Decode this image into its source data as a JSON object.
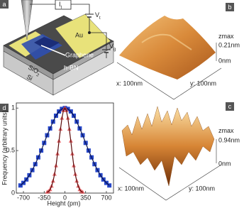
{
  "panels": {
    "a": {
      "label": "a",
      "current": {
        "main": "I",
        "sub": "t"
      },
      "tip_bias": {
        "main": "V",
        "sub": "t"
      },
      "gate": {
        "main": "V",
        "sub": "g"
      },
      "gold": "Au",
      "graphene": "Graphene",
      "hbn": "h-BN",
      "oxide": {
        "main": "SiO",
        "sub": "2"
      },
      "substrate": "Si"
    },
    "b": {
      "label": "b",
      "z_title": {
        "main": "z",
        "sub": "max"
      },
      "z_max": "0.21nm",
      "z_min": "0nm",
      "x_size": "x: 100nm",
      "y_size": "y: 100nm"
    },
    "c": {
      "label": "c",
      "z_title": {
        "main": "z",
        "sub": "max"
      },
      "z_max": "0.94nm",
      "z_min": "0nm",
      "x_size": "x: 100nm",
      "y_size": "y: 100nm"
    }
  },
  "chart_data": {
    "type": "scatter",
    "panel_label": "d",
    "x_label": "Height (pm)",
    "y_label": "Frequency (arbitrary units)",
    "xlim": [
      -820,
      820
    ],
    "ylim": [
      0,
      1.06
    ],
    "xticks": [
      -700,
      -350,
      0,
      350,
      700
    ],
    "yticks": [
      0,
      0.5,
      1
    ],
    "series": [
      {
        "color": "#2646c8",
        "line_color": "#0a1450",
        "marker": "square",
        "x": [
          -750,
          -700,
          -650,
          -600,
          -550,
          -500,
          -450,
          -400,
          -350,
          -300,
          -250,
          -200,
          -150,
          -100,
          -50,
          0,
          50,
          100,
          150,
          200,
          250,
          300,
          350,
          400,
          450,
          500,
          550,
          600,
          650,
          700,
          750
        ],
        "values": [
          0.09,
          0.12,
          0.16,
          0.21,
          0.27,
          0.34,
          0.42,
          0.5,
          0.59,
          0.68,
          0.76,
          0.84,
          0.91,
          0.96,
          0.99,
          1,
          0.99,
          0.96,
          0.91,
          0.84,
          0.76,
          0.68,
          0.59,
          0.5,
          0.42,
          0.34,
          0.27,
          0.21,
          0.16,
          0.12,
          0.09
        ]
      },
      {
        "color": "#e0474c",
        "line_color": "#5a0a0a",
        "marker": "triangle",
        "x": [
          -300,
          -275,
          -250,
          -225,
          -200,
          -175,
          -150,
          -125,
          -100,
          -75,
          -50,
          -25,
          0,
          25,
          50,
          75,
          100,
          125,
          150,
          175,
          200,
          225,
          250,
          275,
          300
        ],
        "values": [
          0.01,
          0.02,
          0.04,
          0.08,
          0.14,
          0.22,
          0.32,
          0.46,
          0.61,
          0.75,
          0.88,
          0.97,
          1,
          0.97,
          0.88,
          0.75,
          0.61,
          0.46,
          0.32,
          0.22,
          0.14,
          0.08,
          0.04,
          0.02,
          0.01
        ]
      }
    ]
  }
}
